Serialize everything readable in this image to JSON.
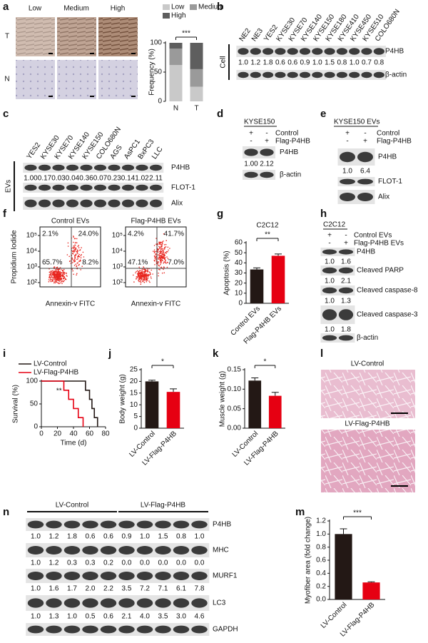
{
  "panels": {
    "a": {
      "letter": "a",
      "columns": [
        "Low",
        "Medium",
        "High"
      ],
      "rows": [
        "T",
        "N"
      ]
    },
    "b": {
      "letter": "b",
      "group": "Cell",
      "lanes": [
        "NE2",
        "NE3",
        "YES2",
        "KYSE30",
        "KYSE70",
        "KYSE140",
        "KYSE150",
        "KYSE180",
        "KYSE410",
        "KYSE450",
        "KYSE510",
        "COLO680N"
      ],
      "blots": [
        {
          "name": "P4HB",
          "quant": [
            "1.0",
            "1.2",
            "1.8",
            "0.6",
            "0.6",
            "0.9",
            "1.0",
            "1.5",
            "0.8",
            "1.0",
            "0.7",
            "0.8"
          ]
        },
        {
          "name": "β-actin"
        }
      ]
    },
    "c": {
      "letter": "c",
      "group": "EVs",
      "lanes": [
        "YES2",
        "KYSE30",
        "KYSE70",
        "KYSE140",
        "KYSE150",
        "COLO680N",
        "AGS",
        "AsPC1",
        "BxPC3",
        "LLC"
      ],
      "blots": [
        {
          "name": "P4HB",
          "quant": [
            "1.00",
            "0.17",
            "0.03",
            "0.04",
            "0.36",
            "0.07",
            "0.23",
            "0.14",
            "1.02",
            "2.11"
          ]
        },
        {
          "name": "FLOT-1"
        },
        {
          "name": "Alix"
        }
      ]
    },
    "d": {
      "letter": "d",
      "title": "KYSE150",
      "conditions": [
        {
          "name": "Control",
          "signs": [
            "+",
            "-"
          ]
        },
        {
          "name": "Flag-P4HB",
          "signs": [
            "-",
            "+"
          ]
        }
      ],
      "blots": [
        {
          "name": "P4HB",
          "quant": [
            "1.00",
            "2.12"
          ]
        },
        {
          "name": "β-actin"
        }
      ]
    },
    "e": {
      "letter": "e",
      "title": "KYSE150 EVs",
      "conditions": [
        {
          "name": "Control",
          "signs": [
            "+",
            "-"
          ]
        },
        {
          "name": "Flag-P4HB",
          "signs": [
            "-",
            "+"
          ]
        }
      ],
      "blots": [
        {
          "name": "P4HB",
          "quant": [
            "1.0",
            "6.4"
          ]
        },
        {
          "name": "FLOT-1"
        },
        {
          "name": "Alix"
        }
      ]
    },
    "f": {
      "letter": "f",
      "y_label": "Propidium Iodide",
      "x_label": "Annexin-v FITC",
      "ticks": [
        "10⁵",
        "10⁴",
        "10³",
        "10²"
      ],
      "plots": [
        {
          "title": "Control EVs",
          "quadrants": [
            "2.1%",
            "24.0%",
            "65.7%",
            "8.2%"
          ]
        },
        {
          "title": "Flag-P4HB EVs",
          "quadrants": [
            "4.2%",
            "41.7%",
            "47.1%",
            "7.0%"
          ]
        }
      ]
    },
    "g": {
      "letter": "g"
    },
    "h": {
      "letter": "h",
      "title": "C2C12",
      "conditions": [
        {
          "name": "Control EVs",
          "signs": [
            "+",
            "-"
          ]
        },
        {
          "name": "Flag-P4HB EVs",
          "signs": [
            "-",
            "+"
          ]
        }
      ],
      "blots": [
        {
          "name": "P4HB",
          "quant": [
            "1.0",
            "1.6"
          ]
        },
        {
          "name": "Cleaved PARP",
          "quant": [
            "1.0",
            "2.1"
          ]
        },
        {
          "name": "Cleaved caspase-8",
          "quant": [
            "1.0",
            "1.3"
          ]
        },
        {
          "name": "Cleaved caspase-3",
          "quant": [
            "1.0",
            "1.8"
          ]
        },
        {
          "name": "β-actin"
        }
      ]
    },
    "i": {
      "letter": "i"
    },
    "j": {
      "letter": "j"
    },
    "k": {
      "letter": "k"
    },
    "l": {
      "letter": "l",
      "images": [
        "LV-Control",
        "LV-Flag-P4HB"
      ]
    },
    "m": {
      "letter": "m"
    },
    "n": {
      "letter": "n",
      "groups": [
        "LV-Control",
        "LV-Flag-P4HB"
      ],
      "blots": [
        {
          "name": "P4HB",
          "quant": [
            "1.0",
            "1.2",
            "1.8",
            "0.6",
            "0.6",
            "0.9",
            "1.0",
            "1.5",
            "0.8",
            "1.0"
          ]
        },
        {
          "name": "MHC",
          "quant": [
            "1.0",
            "1.2",
            "0.3",
            "0.3",
            "0.2",
            "0.0",
            "0.0",
            "0.0",
            "0.0",
            "0.0"
          ]
        },
        {
          "name": "MURF1",
          "quant": [
            "1.0",
            "1.6",
            "1.7",
            "2.0",
            "2.2",
            "3.5",
            "7.2",
            "7.1",
            "6.1",
            "7.8"
          ]
        },
        {
          "name": "LC3",
          "quant": [
            "1.0",
            "1.3",
            "1.0",
            "0.5",
            "0.6",
            "2.1",
            "4.0",
            "3.5",
            "3.0",
            "4.6"
          ]
        },
        {
          "name": "GAPDH"
        }
      ]
    }
  },
  "chart_data": [
    {
      "type": "stacked_bar",
      "categories": [
        "N",
        "T"
      ],
      "y_label": "Frequency (%)",
      "series": [
        {
          "name": "Low",
          "color": "#c9c9c9",
          "values": [
            62,
            25
          ]
        },
        {
          "name": "Medium",
          "color": "#9a9a9a",
          "values": [
            28,
            30
          ]
        },
        {
          "name": "High",
          "color": "#5e5e5e",
          "values": [
            10,
            45
          ]
        }
      ],
      "ylim": [
        0,
        100
      ],
      "yticks": [
        0,
        50,
        100
      ],
      "annotation": "***"
    },
    {
      "type": "bar",
      "title": "C2C12",
      "y_label": "Apoptosis (%)",
      "categories": [
        "Control EVs",
        "Flag-P4HB EVs"
      ],
      "values": [
        33.5,
        47
      ],
      "errors": [
        1.5,
        1.8
      ],
      "colors": [
        "#231815",
        "#e60012"
      ],
      "ylim": [
        0,
        60
      ],
      "yticks": [
        0,
        10,
        20,
        30,
        40,
        50,
        60
      ],
      "annotation": "**"
    },
    {
      "type": "line",
      "y_label": "Survival (%)",
      "x_label": "Time (d)",
      "series": [
        {
          "name": "LV-Control",
          "color": "#231815",
          "x": [
            0,
            55,
            55,
            60,
            60,
            63,
            63,
            66,
            66,
            70,
            70
          ],
          "values": [
            100,
            100,
            80,
            80,
            60,
            60,
            40,
            40,
            20,
            20,
            0
          ]
        },
        {
          "name": "LV-Flag-P4HB",
          "color": "#e60012",
          "x": [
            0,
            28,
            28,
            34,
            34,
            40,
            40,
            46,
            46,
            52,
            52
          ],
          "values": [
            100,
            100,
            80,
            80,
            60,
            60,
            40,
            40,
            20,
            20,
            0
          ]
        }
      ],
      "xlim": [
        0,
        80
      ],
      "xticks": [
        0,
        20,
        40,
        60,
        80
      ],
      "ylim": [
        0,
        100
      ],
      "yticks": [
        0,
        50,
        100
      ],
      "annotation": "**"
    },
    {
      "type": "bar",
      "y_label": "Body weight (g)",
      "categories": [
        "LV-Control",
        "LV-Flag-P4HB"
      ],
      "values": [
        20,
        15.5
      ],
      "errors": [
        0.5,
        1.3
      ],
      "colors": [
        "#231815",
        "#e60012"
      ],
      "ylim": [
        0,
        25
      ],
      "yticks": [
        0,
        5,
        10,
        15,
        20,
        25
      ],
      "annotation": "*"
    },
    {
      "type": "bar",
      "y_label": "Muscle weight (g)",
      "categories": [
        "LV-Control",
        "LV-Flag-P4HB"
      ],
      "values": [
        0.122,
        0.083
      ],
      "errors": [
        0.007,
        0.009
      ],
      "colors": [
        "#231815",
        "#e60012"
      ],
      "ylim": [
        0,
        0.15
      ],
      "yticks": [
        {
          "value": 0,
          "label": "0.00"
        },
        0.05,
        {
          "value": 0.1,
          "label": "0.10"
        },
        0.15
      ],
      "annotation": "*"
    },
    {
      "type": "bar",
      "y_label": "Myofiber area (fold change)",
      "categories": [
        "LV-Control",
        "LV-Flag-P4HB"
      ],
      "values": [
        1.0,
        0.26
      ],
      "errors": [
        0.08,
        0.01
      ],
      "colors": [
        "#231815",
        "#e60012"
      ],
      "ylim": [
        0,
        1.2
      ],
      "yticks": [
        {
          "value": 0,
          "label": "0.0"
        },
        0.2,
        0.4,
        0.6,
        0.8,
        {
          "value": 1,
          "label": "1.0"
        },
        1.2
      ],
      "annotation": "***"
    }
  ]
}
